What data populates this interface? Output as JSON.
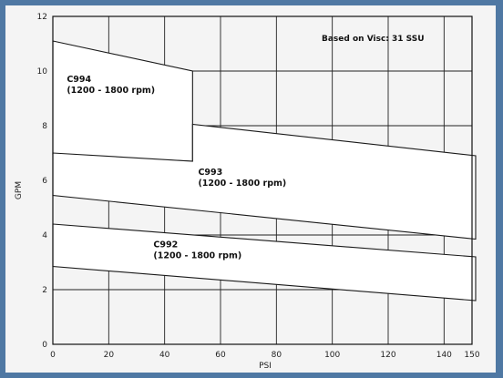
{
  "chart_data": {
    "type": "area",
    "title": "",
    "xlabel": "PSI",
    "ylabel": "GPM",
    "xlim": [
      0,
      150
    ],
    "ylim": [
      0,
      12
    ],
    "x_ticks": [
      0,
      20,
      40,
      60,
      80,
      100,
      120,
      140,
      150
    ],
    "y_ticks": [
      0,
      2,
      4,
      6,
      8,
      10,
      12
    ],
    "grid_x": [
      20,
      40,
      60,
      80,
      100,
      120,
      140
    ],
    "grid_y": [
      2,
      4,
      6,
      8,
      10
    ],
    "grid": true,
    "note": "Based on Visc: 31 SSU",
    "series": [
      {
        "label_lines": [
          "C994",
          "(1200 - 1800 rpm)"
        ],
        "upper": [
          [
            0,
            11.1
          ],
          [
            50,
            10.0
          ]
        ],
        "lower": [
          [
            0,
            6.95
          ],
          [
            50,
            6.7
          ]
        ],
        "label_at": [
          5,
          9.6
        ]
      },
      {
        "label_lines": [
          "C993",
          "(1200 - 1800 rpm)"
        ],
        "upper": [
          [
            0,
            7.0
          ],
          [
            50,
            6.7
          ],
          [
            50,
            8.05
          ],
          [
            160,
            6.9
          ]
        ],
        "lower": [
          [
            0,
            5.45
          ],
          [
            160,
            3.85
          ]
        ],
        "label_at": [
          52,
          6.2
        ]
      },
      {
        "label_lines": [
          "C992",
          "(1200 - 1800 rpm)"
        ],
        "upper": [
          [
            0,
            4.4
          ],
          [
            160,
            3.2
          ]
        ],
        "lower": [
          [
            0,
            2.85
          ],
          [
            160,
            1.6
          ]
        ],
        "label_at": [
          36,
          3.55
        ]
      }
    ]
  }
}
